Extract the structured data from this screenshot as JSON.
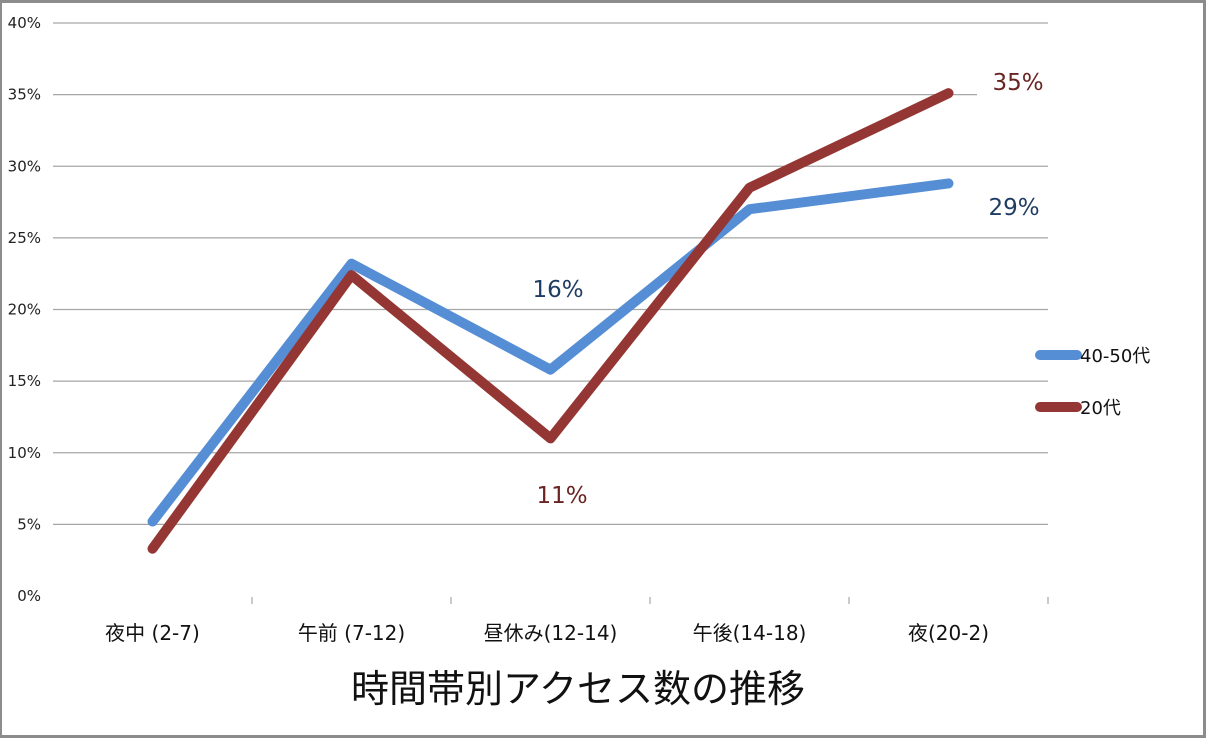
{
  "chart_data": {
    "type": "line",
    "title": "時間帯別アクセス数の推移",
    "xlabel": "",
    "ylabel": "",
    "categories": [
      "夜中 (2-7)",
      "午前 (7-12)",
      "昼休み(12-14)",
      "午後(14-18)",
      "夜(20-2)"
    ],
    "series": [
      {
        "name": "40-50代",
        "color": "#558ED5",
        "values": [
          5.2,
          23.2,
          15.8,
          27.0,
          28.8
        ]
      },
      {
        "name": "20代",
        "color": "#943634",
        "values": [
          3.3,
          22.4,
          11.0,
          28.5,
          35.1
        ]
      }
    ],
    "y_ticks": [
      "0%",
      "5%",
      "10%",
      "15%",
      "20%",
      "25%",
      "30%",
      "35%",
      "40%"
    ],
    "ylim": [
      0,
      40
    ],
    "grid": true,
    "legend_position": "right",
    "annotations": [
      {
        "text": "16%",
        "series": "40-50代",
        "category": "昼休み(12-14)",
        "color": "#1F3D63"
      },
      {
        "text": "11%",
        "series": "20代",
        "category": "昼休み(12-14)",
        "color": "#6A2422"
      },
      {
        "text": "35%",
        "series": "20代",
        "category": "夜(20-2)",
        "color": "#6A2422"
      },
      {
        "text": "29%",
        "series": "40-50代",
        "category": "夜(20-2)",
        "color": "#1F3D63"
      }
    ]
  }
}
